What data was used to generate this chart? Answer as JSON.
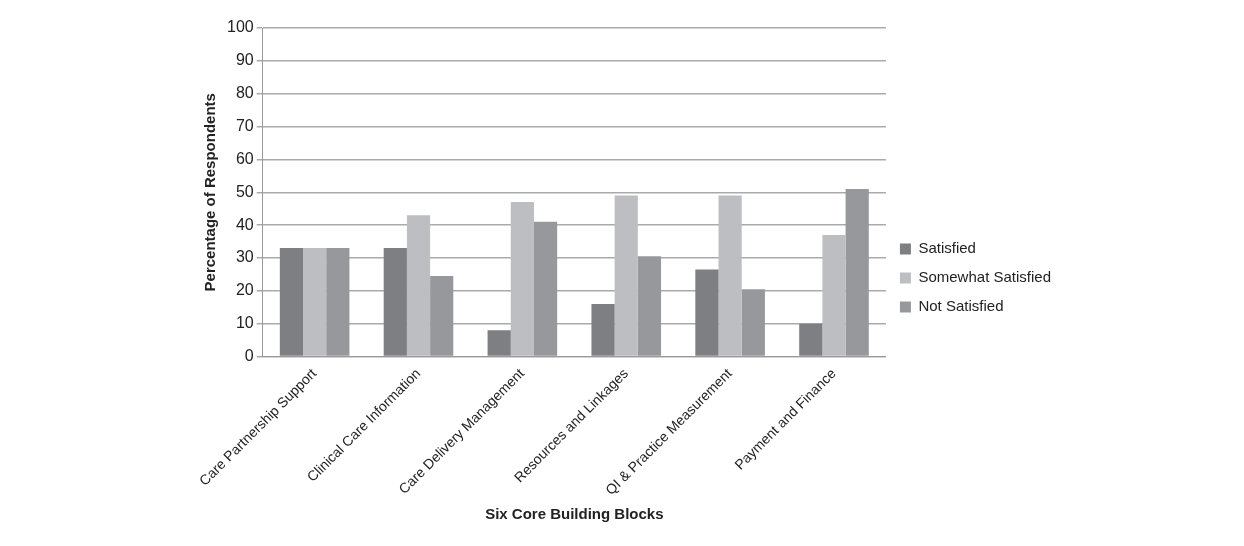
{
  "chart_data": {
    "type": "bar",
    "xlabel": "Six Core Building Blocks",
    "ylabel": "Percentage of Respondents",
    "categories": [
      "Care Partnership Support",
      "Clinical Care Information",
      "Care Delivery Management",
      "Resources and Linkages",
      "QI & Practice Measurement",
      "Payment and Finance"
    ],
    "series": [
      {
        "name": "Satisfied",
        "color": "#7e7f83",
        "values": [
          33,
          33,
          8,
          16,
          26.5,
          10
        ]
      },
      {
        "name": "Somewhat Satisfied",
        "color": "#bdbec2",
        "values": [
          33,
          43,
          47,
          49,
          49,
          37
        ]
      },
      {
        "name": "Not Satisfied",
        "color": "#97989c",
        "values": [
          33,
          24.5,
          41,
          30.5,
          20.5,
          51
        ]
      }
    ],
    "ylim": [
      0,
      100
    ],
    "yticks": [
      0,
      10,
      20,
      30,
      40,
      50,
      60,
      70,
      80,
      90,
      100
    ],
    "grid": "y",
    "legend": "right"
  }
}
